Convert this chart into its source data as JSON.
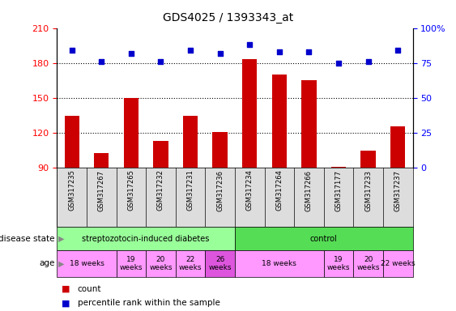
{
  "title": "GDS4025 / 1393343_at",
  "samples": [
    "GSM317235",
    "GSM317267",
    "GSM317265",
    "GSM317232",
    "GSM317231",
    "GSM317236",
    "GSM317234",
    "GSM317264",
    "GSM317266",
    "GSM317177",
    "GSM317233",
    "GSM317237"
  ],
  "counts": [
    135,
    103,
    150,
    113,
    135,
    121,
    183,
    170,
    165,
    91,
    105,
    126
  ],
  "percentiles": [
    84,
    76,
    82,
    76,
    84,
    82,
    88,
    83,
    83,
    75,
    76,
    84
  ],
  "left_ylim": [
    90,
    210
  ],
  "left_yticks": [
    90,
    120,
    150,
    180,
    210
  ],
  "right_ylim": [
    0,
    100
  ],
  "right_yticks": [
    0,
    25,
    50,
    75,
    100
  ],
  "right_yticklabels": [
    "0",
    "25",
    "50",
    "75",
    "100%"
  ],
  "bar_color": "#cc0000",
  "dot_color": "#0000cc",
  "grid_values": [
    120,
    150,
    180
  ],
  "disease_state_groups": [
    {
      "label": "streptozotocin-induced diabetes",
      "start": 0,
      "end": 6,
      "color": "#99ff99"
    },
    {
      "label": "control",
      "start": 6,
      "end": 12,
      "color": "#55dd55"
    }
  ],
  "age_groups": [
    {
      "label": "18 weeks",
      "start": 0,
      "end": 2,
      "color": "#ff99ff"
    },
    {
      "label": "19\nweeks",
      "start": 2,
      "end": 3,
      "color": "#ff99ff"
    },
    {
      "label": "20\nweeks",
      "start": 3,
      "end": 4,
      "color": "#ff99ff"
    },
    {
      "label": "22\nweeks",
      "start": 4,
      "end": 5,
      "color": "#ff99ff"
    },
    {
      "label": "26\nweeks",
      "start": 5,
      "end": 6,
      "color": "#dd55dd"
    },
    {
      "label": "18 weeks",
      "start": 6,
      "end": 9,
      "color": "#ff99ff"
    },
    {
      "label": "19\nweeks",
      "start": 9,
      "end": 10,
      "color": "#ff99ff"
    },
    {
      "label": "20\nweeks",
      "start": 10,
      "end": 11,
      "color": "#ff99ff"
    },
    {
      "label": "22 weeks",
      "start": 11,
      "end": 12,
      "color": "#ff99ff"
    }
  ],
  "legend_count_label": "count",
  "legend_percentile_label": "percentile rank within the sample",
  "disease_state_label": "disease state",
  "age_label": "age"
}
